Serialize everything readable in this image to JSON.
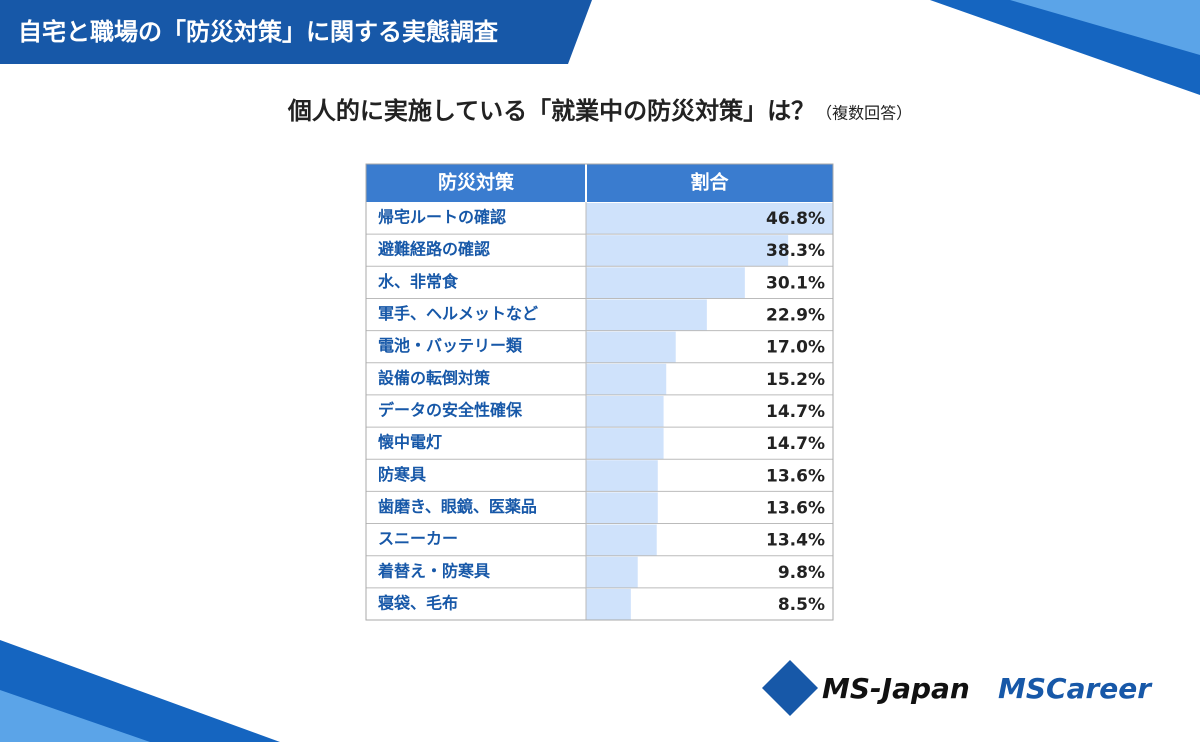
{
  "header": {
    "title": "自宅と職場の「防災対策」に関する実態調査"
  },
  "chart_data": {
    "type": "bar",
    "title": "個人的に実施している「就業中の防災対策」は？",
    "subtitle": "（複数回答）",
    "columns": [
      "防災対策",
      "割合"
    ],
    "categories": [
      "帰宅ルートの確認",
      "避難経路の確認",
      "水、非常食",
      "軍手、ヘルメットなど",
      "電池・バッテリー類",
      "設備の転倒対策",
      "データの安全性確保",
      "懐中電灯",
      "防寒具",
      "歯磨き、眼鏡、医薬品",
      "スニーカー",
      "着替え・防寒具",
      "寝袋、毛布"
    ],
    "values": [
      46.8,
      38.3,
      30.1,
      22.9,
      17.0,
      15.2,
      14.7,
      14.7,
      13.6,
      13.6,
      13.4,
      9.8,
      8.5
    ],
    "value_labels": [
      "46.8%",
      "38.3%",
      "30.1%",
      "22.9%",
      "17.0%",
      "15.2%",
      "14.7%",
      "14.7%",
      "13.6%",
      "13.6%",
      "13.4%",
      "9.8%",
      "8.5%"
    ],
    "color": "#cfe2fb"
  },
  "logos": [
    "MS-Japan",
    "MSCareer"
  ]
}
